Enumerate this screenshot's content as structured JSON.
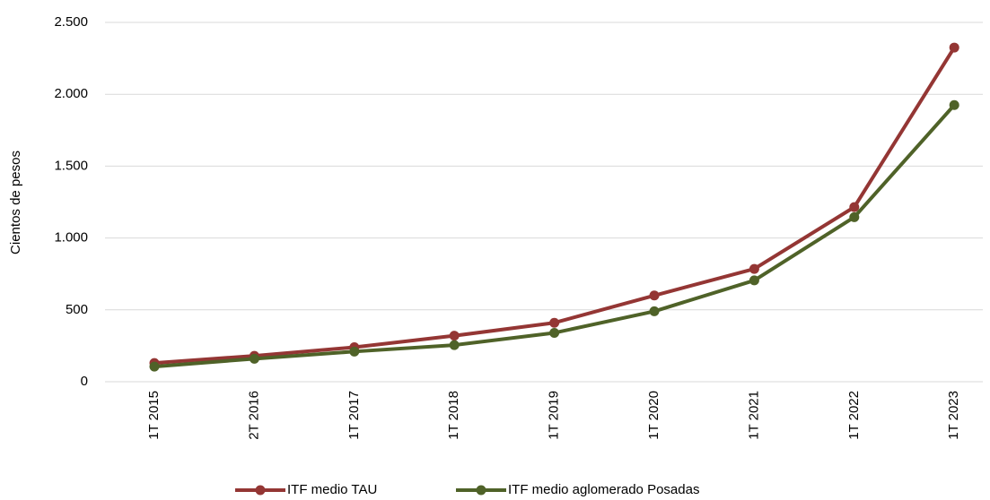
{
  "chart_data": {
    "type": "line",
    "y_label": "Cientos de pesos",
    "categories": [
      "1T 2015",
      "2T 2016",
      "1T 2017",
      "1T 2018",
      "1T 2019",
      "1T 2020",
      "1T 2021",
      "1T 2022",
      "1T 2023"
    ],
    "series": [
      {
        "name": "ITF medio TAU",
        "color": "#943634",
        "values": [
          130,
          180,
          240,
          320,
          410,
          600,
          785,
          1215,
          2325
        ]
      },
      {
        "name": "ITF medio aglomerado Posadas",
        "color": "#4f6228",
        "values": [
          105,
          160,
          210,
          255,
          340,
          490,
          705,
          1145,
          1925
        ]
      }
    ],
    "ylim": [
      0,
      2500
    ],
    "yticks": [
      0,
      500,
      {
        "value": 1000,
        "label": "1.000"
      },
      {
        "value": 1500,
        "label": "1.500"
      },
      {
        "value": 2000,
        "label": "2.000"
      },
      {
        "value": 2500,
        "label": "2.500"
      }
    ],
    "grid": true,
    "legend": "bottom"
  }
}
